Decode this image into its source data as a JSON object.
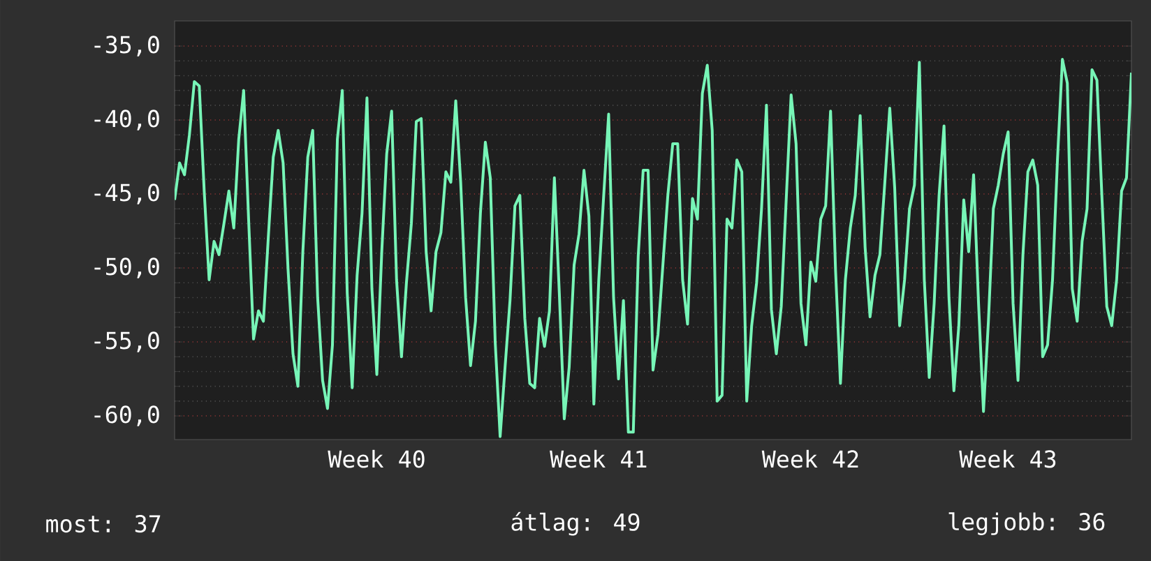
{
  "chart_data": {
    "type": "line",
    "categories": [
      null,
      null,
      null,
      null,
      null,
      null,
      null,
      null,
      null,
      null,
      null,
      null,
      null,
      null,
      null,
      null,
      null,
      null,
      null,
      null,
      null,
      null,
      null,
      null,
      null,
      null,
      null,
      null,
      null,
      null,
      null,
      null,
      null,
      null,
      null,
      null,
      null,
      null,
      null,
      null,
      null,
      "Week 40",
      null,
      null,
      null,
      null,
      null,
      null,
      null,
      null,
      null,
      null,
      null,
      null,
      null,
      null,
      null,
      null,
      null,
      null,
      null,
      null,
      null,
      null,
      null,
      null,
      null,
      null,
      null,
      null,
      null,
      null,
      null,
      null,
      null,
      null,
      null,
      null,
      null,
      null,
      null,
      null,
      null,
      null,
      null,
      null,
      "Week 41",
      null,
      null,
      null,
      null,
      null,
      null,
      null,
      null,
      null,
      null,
      null,
      null,
      null,
      null,
      null,
      null,
      null,
      null,
      null,
      null,
      null,
      null,
      null,
      null,
      null,
      null,
      null,
      null,
      null,
      null,
      null,
      null,
      null,
      null,
      null,
      null,
      null,
      null,
      null,
      null,
      null,
      null,
      "Week 42",
      null,
      null,
      null,
      null,
      null,
      null,
      null,
      null,
      null,
      null,
      null,
      null,
      null,
      null,
      null,
      null,
      null,
      null,
      null,
      null,
      null,
      null,
      null,
      null,
      null,
      null,
      null,
      null,
      null,
      null,
      null,
      null,
      null,
      null,
      null,
      null,
      null,
      null,
      null,
      "Week 43",
      null,
      null,
      null,
      null,
      null,
      null,
      null,
      null,
      null,
      null,
      null,
      null,
      null,
      null,
      null,
      null,
      null,
      null,
      null,
      null,
      null,
      null,
      null,
      null,
      null
    ],
    "series": [
      {
        "color": "#77f5b7",
        "values": [
          -45.4,
          -42.9,
          -43.7,
          -41.0,
          -37.4,
          -37.7,
          -44.8,
          -50.8,
          -48.2,
          -49.1,
          -47.0,
          -44.8,
          -47.3,
          -41.3,
          -38.0,
          -46.7,
          -54.8,
          -52.9,
          -53.6,
          -47.9,
          -42.5,
          -40.7,
          -42.9,
          -50.1,
          -55.8,
          -58.0,
          -48.9,
          -42.5,
          -40.7,
          -52.0,
          -57.6,
          -59.5,
          -55.2,
          -41.3,
          -38.0,
          -51.7,
          -58.1,
          -50.5,
          -46.3,
          -38.5,
          -51.4,
          -57.2,
          -48.9,
          -42.3,
          -39.4,
          -50.8,
          -56.0,
          -51.0,
          -47.0,
          -40.1,
          -39.9,
          -48.9,
          -52.9,
          -48.9,
          -47.6,
          -43.5,
          -44.2,
          -38.7,
          -44.2,
          -52.0,
          -56.6,
          -53.6,
          -46.3,
          -41.5,
          -43.9,
          -55.0,
          -61.4,
          -56.7,
          -52.2,
          -45.8,
          -45.1,
          -53.4,
          -57.8,
          -58.1,
          -53.4,
          -55.3,
          -52.9,
          -43.9,
          -51.7,
          -60.2,
          -56.7,
          -49.8,
          -47.7,
          -43.4,
          -46.5,
          -59.2,
          -50.8,
          -45.1,
          -39.6,
          -52.0,
          -57.5,
          -52.2,
          -61.1,
          -61.1,
          -49.2,
          -43.4,
          -43.4,
          -56.9,
          -54.5,
          -49.8,
          -45.1,
          -41.6,
          -41.6,
          -50.8,
          -53.8,
          -45.3,
          -46.7,
          -38.2,
          -36.3,
          -40.7,
          -59.0,
          -58.6,
          -46.7,
          -47.3,
          -42.7,
          -43.5,
          -59.0,
          -53.9,
          -51.0,
          -46.0,
          -39.0,
          -52.8,
          -55.8,
          -52.6,
          -45.4,
          -38.3,
          -41.6,
          -52.4,
          -55.2,
          -49.6,
          -50.9,
          -46.7,
          -45.8,
          -39.4,
          -50.1,
          -57.8,
          -50.8,
          -47.3,
          -45.1,
          -39.7,
          -48.6,
          -53.3,
          -50.5,
          -49.1,
          -44.2,
          -39.2,
          -44.6,
          -53.9,
          -50.8,
          -46.0,
          -44.4,
          -36.1,
          -50.8,
          -57.4,
          -52.4,
          -45.1,
          -40.4,
          -52.0,
          -58.3,
          -53.9,
          -45.4,
          -48.9,
          -43.7,
          -52.4,
          -59.7,
          -53.6,
          -46.0,
          -44.4,
          -42.3,
          -40.8,
          -52.4,
          -57.6,
          -49.1,
          -43.5,
          -42.7,
          -44.4,
          -56.0,
          -55.2,
          -50.8,
          -42.7,
          -35.9,
          -37.5,
          -51.4,
          -53.6,
          -48.2,
          -46.0,
          -36.6,
          -37.3,
          -45.1,
          -52.6,
          -53.9,
          -50.8,
          -44.8,
          -43.9,
          -36.8
        ]
      }
    ],
    "ylim": [
      -61.6,
      -33.3
    ],
    "yticks": [
      {
        "value": -60,
        "label": "-60,0"
      },
      {
        "value": -55,
        "label": "-55,0"
      },
      {
        "value": -50,
        "label": "-50,0"
      },
      {
        "value": -45,
        "label": "-45,0"
      },
      {
        "value": -40,
        "label": "-40,0"
      },
      {
        "value": -35,
        "label": "-35,0"
      }
    ],
    "grid": "y",
    "marker": "none",
    "line_style": "solid",
    "annotations": [
      "most: 37",
      "átlag: 49",
      "legjobb: 36"
    ]
  }
}
